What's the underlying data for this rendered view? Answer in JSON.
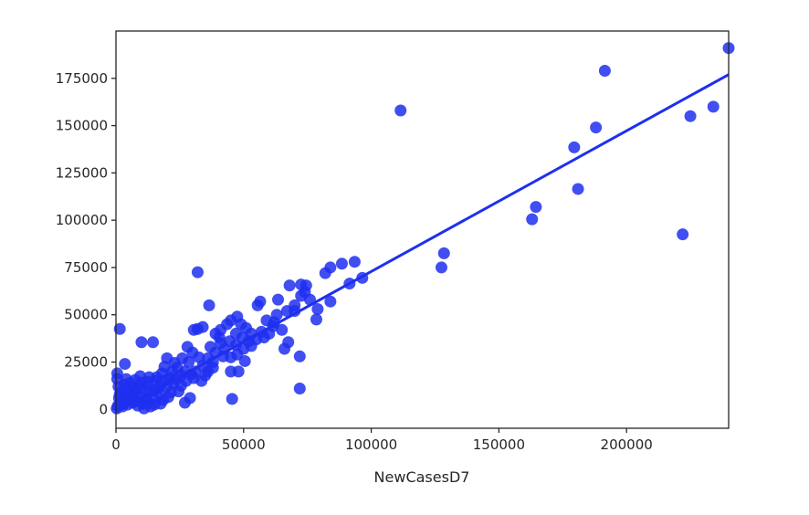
{
  "chart_data": {
    "type": "scatter",
    "title": "",
    "xlabel": "NewCasesD7",
    "ylabel": "",
    "xlim": [
      0,
      240000
    ],
    "ylim": [
      -10000,
      200000
    ],
    "x_ticks": [
      0,
      50000,
      100000,
      150000,
      200000
    ],
    "x_tick_labels": [
      "0",
      "50000",
      "100000",
      "150000",
      "200000"
    ],
    "y_ticks": [
      0,
      25000,
      50000,
      75000,
      100000,
      125000,
      150000,
      175000
    ],
    "y_tick_labels": [
      "0",
      "25000",
      "50000",
      "75000",
      "100000",
      "125000",
      "150000",
      "175000"
    ],
    "grid": false,
    "point_color": "#1f2ff0",
    "line_color": "#1f2ff0",
    "regression_line": {
      "x": [
        0,
        240000
      ],
      "y": [
        -1500,
        177000
      ]
    },
    "points": [
      [
        111500,
        158000
      ],
      [
        191500,
        179000
      ],
      [
        240000,
        191000
      ],
      [
        234000,
        160000
      ],
      [
        225000,
        155000
      ],
      [
        188000,
        149000
      ],
      [
        179500,
        138500
      ],
      [
        181000,
        116500
      ],
      [
        164500,
        107000
      ],
      [
        163000,
        100500
      ],
      [
        222000,
        92500
      ],
      [
        128500,
        82500
      ],
      [
        127500,
        75000
      ],
      [
        93500,
        78000
      ],
      [
        88500,
        77000
      ],
      [
        84000,
        75000
      ],
      [
        82000,
        72000
      ],
      [
        96500,
        69500
      ],
      [
        91500,
        66500
      ],
      [
        72500,
        66000
      ],
      [
        74500,
        65500
      ],
      [
        68000,
        65500
      ],
      [
        74000,
        62000
      ],
      [
        76000,
        58000
      ],
      [
        84000,
        57000
      ],
      [
        79000,
        53000
      ],
      [
        78500,
        47500
      ],
      [
        72500,
        60000
      ],
      [
        70000,
        55000
      ],
      [
        70000,
        52000
      ],
      [
        67000,
        52000
      ],
      [
        63500,
        58000
      ],
      [
        56500,
        57000
      ],
      [
        55500,
        55000
      ],
      [
        63000,
        50000
      ],
      [
        59000,
        47000
      ],
      [
        61500,
        44000
      ],
      [
        60000,
        40000
      ],
      [
        58000,
        38000
      ],
      [
        32000,
        72500
      ],
      [
        36500,
        55000
      ],
      [
        32000,
        42500
      ],
      [
        34000,
        43500
      ],
      [
        30500,
        42000
      ],
      [
        47500,
        49000
      ],
      [
        45000,
        47000
      ],
      [
        49000,
        45000
      ],
      [
        51000,
        43000
      ],
      [
        47000,
        40000
      ],
      [
        53000,
        40000
      ],
      [
        55000,
        37000
      ],
      [
        44500,
        36000
      ],
      [
        41000,
        42000
      ],
      [
        39000,
        40000
      ],
      [
        40500,
        38000
      ],
      [
        37000,
        33000
      ],
      [
        39000,
        30000
      ],
      [
        41000,
        35000
      ],
      [
        42000,
        28000
      ],
      [
        36000,
        27000
      ],
      [
        38000,
        25000
      ],
      [
        36000,
        20000
      ],
      [
        45000,
        27500
      ],
      [
        47000,
        34000
      ],
      [
        50000,
        32000
      ],
      [
        52000,
        36000
      ],
      [
        48000,
        20000
      ],
      [
        50500,
        25500
      ],
      [
        45000,
        20000
      ],
      [
        45500,
        5500
      ],
      [
        66000,
        32000
      ],
      [
        67500,
        35500
      ],
      [
        72000,
        28000
      ],
      [
        72000,
        11000
      ],
      [
        28000,
        33000
      ],
      [
        30000,
        30000
      ],
      [
        26000,
        27000
      ],
      [
        28500,
        25000
      ],
      [
        32500,
        27500
      ],
      [
        34000,
        23000
      ],
      [
        31000,
        20000
      ],
      [
        33500,
        15000
      ],
      [
        29000,
        6000
      ],
      [
        27000,
        3500
      ],
      [
        29500,
        18500
      ],
      [
        27000,
        20000
      ],
      [
        24000,
        22000
      ],
      [
        25500,
        18000
      ],
      [
        23000,
        24500
      ],
      [
        22000,
        20000
      ],
      [
        20000,
        27000
      ],
      [
        19000,
        22500
      ],
      [
        21000,
        17000
      ],
      [
        18000,
        19000
      ],
      [
        16000,
        17000
      ],
      [
        17500,
        13000
      ],
      [
        15000,
        10000
      ],
      [
        20000,
        12000
      ],
      [
        22500,
        14000
      ],
      [
        24500,
        9500
      ],
      [
        17000,
        8000
      ],
      [
        18500,
        5000
      ],
      [
        10000,
        35500
      ],
      [
        14500,
        35500
      ],
      [
        1500,
        42500
      ],
      [
        3500,
        24000
      ],
      [
        12000,
        12000
      ],
      [
        10000,
        14000
      ],
      [
        13000,
        9000
      ],
      [
        11500,
        6000
      ],
      [
        8000,
        10000
      ],
      [
        9000,
        7000
      ],
      [
        7000,
        12000
      ],
      [
        6000,
        8000
      ],
      [
        5000,
        5000
      ],
      [
        4000,
        9000
      ],
      [
        3000,
        6000
      ],
      [
        2000,
        4000
      ],
      [
        1500,
        8000
      ],
      [
        1000,
        12000
      ],
      [
        500,
        16000
      ],
      [
        500,
        19000
      ],
      [
        800,
        2000
      ],
      [
        300,
        500
      ],
      [
        2500,
        1500
      ],
      [
        4500,
        2500
      ],
      [
        6500,
        3500
      ],
      [
        8500,
        2000
      ],
      [
        10500,
        3000
      ],
      [
        12500,
        4000
      ],
      [
        14500,
        6000
      ],
      [
        13500,
        1500
      ],
      [
        11000,
        500
      ],
      [
        15500,
        15000
      ],
      [
        13000,
        17000
      ],
      [
        9500,
        17500
      ],
      [
        7500,
        15500
      ],
      [
        5500,
        14000
      ],
      [
        3500,
        13000
      ],
      [
        2500,
        10000
      ],
      [
        6500,
        6500
      ],
      [
        9500,
        11500
      ],
      [
        12500,
        14500
      ],
      [
        16500,
        11000
      ],
      [
        19500,
        15500
      ],
      [
        21500,
        9000
      ],
      [
        23500,
        16000
      ],
      [
        25500,
        12500
      ],
      [
        27500,
        15000
      ],
      [
        30500,
        16500
      ],
      [
        35000,
        18000
      ],
      [
        38000,
        22000
      ],
      [
        42500,
        32000
      ],
      [
        47500,
        29000
      ],
      [
        53000,
        33500
      ],
      [
        57000,
        41000
      ],
      [
        62000,
        46000
      ],
      [
        65000,
        42000
      ],
      [
        43500,
        45000
      ],
      [
        49500,
        38000
      ],
      [
        17500,
        3000
      ],
      [
        15000,
        2500
      ],
      [
        20500,
        6500
      ],
      [
        4000,
        16000
      ],
      [
        1200,
        6000
      ],
      [
        8000,
        4500
      ]
    ]
  }
}
